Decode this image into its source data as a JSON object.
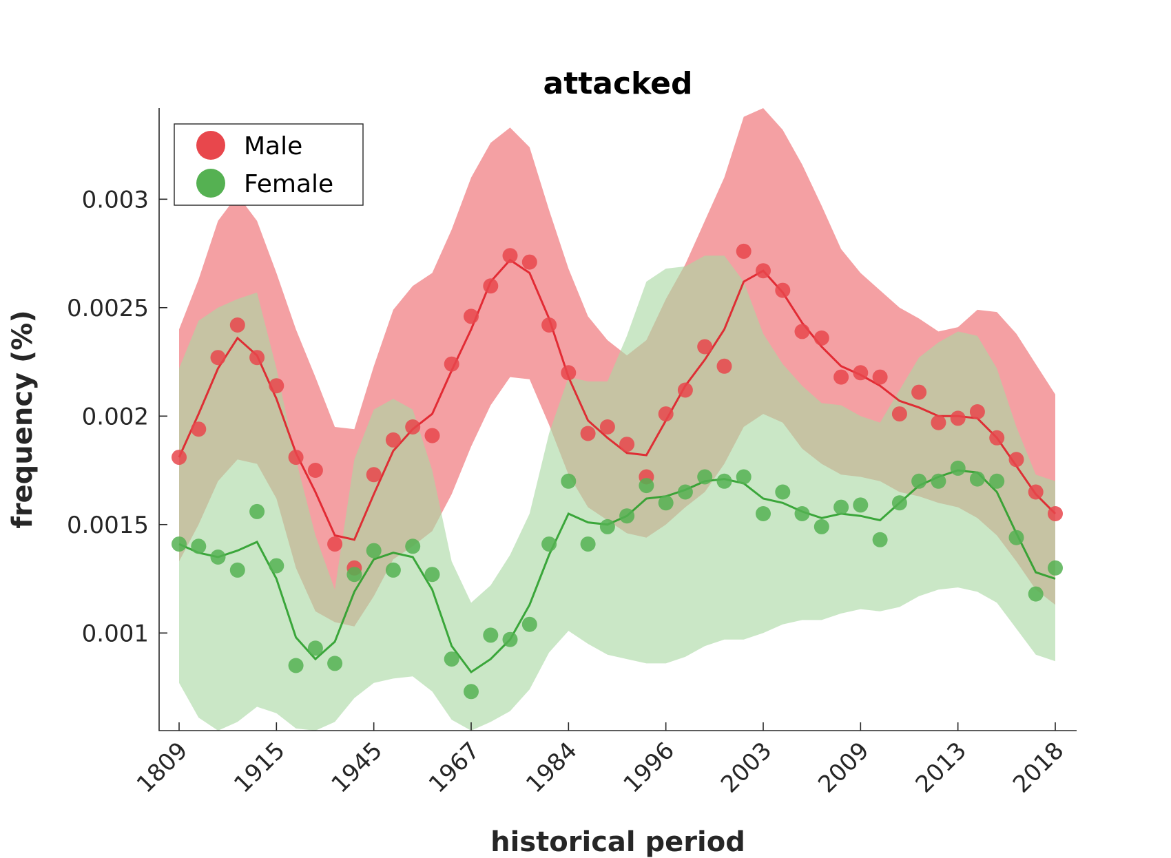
{
  "chart_data": {
    "type": "scatter",
    "title": "attacked",
    "xlabel": "historical period",
    "ylabel": "frequency (%)",
    "x_tick_labels": [
      "1809",
      "1915",
      "1945",
      "1967",
      "1984",
      "1996",
      "2003",
      "2009",
      "2013",
      "2018"
    ],
    "y_tick_labels": [
      "0.001",
      "0.0015",
      "0.002",
      "0.0025",
      "0.003"
    ],
    "y_ticks": [
      0.001,
      0.0015,
      0.002,
      0.0025,
      0.003
    ],
    "ylim": [
      0.00055,
      0.00342
    ],
    "n_points": 46,
    "legend": {
      "position": "top-left",
      "entries": [
        "Male",
        "Female"
      ]
    },
    "series": [
      {
        "name": "Male",
        "marker_color": "#e8474c",
        "line_color": "#e01e28",
        "band_color": "#f4a0a3",
        "points": [
          0.00181,
          0.00194,
          0.00227,
          0.00242,
          0.00227,
          0.00214,
          0.00181,
          0.00175,
          0.00141,
          0.0013,
          0.00173,
          0.00189,
          0.00195,
          0.00191,
          0.00224,
          0.00246,
          0.0026,
          0.00274,
          0.00271,
          0.00242,
          0.0022,
          0.00192,
          0.00195,
          0.00187,
          0.00172,
          0.00201,
          0.00212,
          0.00232,
          0.00223,
          0.00276,
          0.00267,
          0.00258,
          0.00239,
          0.00236,
          0.00218,
          0.0022,
          0.00218,
          0.00201,
          0.00211,
          0.00197,
          0.00199,
          0.00202,
          0.0019,
          0.0018,
          0.00165,
          0.00155
        ],
        "fit": [
          0.00181,
          0.00201,
          0.00222,
          0.00236,
          0.00228,
          0.00208,
          0.00183,
          0.00165,
          0.00145,
          0.00143,
          0.00164,
          0.00184,
          0.00194,
          0.00201,
          0.00221,
          0.0024,
          0.00262,
          0.00272,
          0.00266,
          0.00245,
          0.00218,
          0.00198,
          0.0019,
          0.00183,
          0.00182,
          0.00198,
          0.00214,
          0.00226,
          0.0024,
          0.00262,
          0.00267,
          0.00257,
          0.00243,
          0.00232,
          0.00223,
          0.00219,
          0.00214,
          0.00207,
          0.00204,
          0.002,
          0.002,
          0.00199,
          0.0019,
          0.00177,
          0.00164,
          0.00155
        ],
        "band_upper": [
          0.0024,
          0.00263,
          0.0029,
          0.00302,
          0.0029,
          0.00266,
          0.0024,
          0.00218,
          0.00195,
          0.00194,
          0.00223,
          0.00249,
          0.0026,
          0.00266,
          0.00286,
          0.0031,
          0.00326,
          0.00333,
          0.00324,
          0.00295,
          0.00268,
          0.00246,
          0.00235,
          0.00228,
          0.00235,
          0.00254,
          0.0027,
          0.0029,
          0.0031,
          0.00338,
          0.00342,
          0.00332,
          0.00316,
          0.00297,
          0.00277,
          0.00266,
          0.00258,
          0.0025,
          0.00245,
          0.00239,
          0.00241,
          0.00249,
          0.00248,
          0.00238,
          0.00224,
          0.0021
        ],
        "band_lower": [
          0.00133,
          0.0015,
          0.0017,
          0.0018,
          0.00178,
          0.00162,
          0.0013,
          0.0011,
          0.00105,
          0.00103,
          0.00117,
          0.00134,
          0.0014,
          0.00147,
          0.00164,
          0.00186,
          0.00205,
          0.00218,
          0.00217,
          0.00196,
          0.00173,
          0.00158,
          0.00152,
          0.00146,
          0.00144,
          0.0015,
          0.00158,
          0.00165,
          0.00178,
          0.00195,
          0.00201,
          0.00197,
          0.00185,
          0.00178,
          0.00173,
          0.00172,
          0.0017,
          0.00165,
          0.00163,
          0.0016,
          0.00158,
          0.00153,
          0.00145,
          0.00133,
          0.0012,
          0.00113
        ]
      },
      {
        "name": "Female",
        "marker_color": "#55b152",
        "line_color": "#2a9e2a",
        "band_color": "#a9d9a3",
        "points": [
          0.00141,
          0.0014,
          0.00135,
          0.00129,
          0.00156,
          0.00131,
          0.00085,
          0.00093,
          0.00086,
          0.00127,
          0.00138,
          0.00129,
          0.0014,
          0.00127,
          0.00088,
          0.00073,
          0.00099,
          0.00097,
          0.00104,
          0.00141,
          0.0017,
          0.00141,
          0.00149,
          0.00154,
          0.00168,
          0.0016,
          0.00165,
          0.00172,
          0.0017,
          0.00172,
          0.00155,
          0.00165,
          0.00155,
          0.00149,
          0.00158,
          0.00159,
          0.00143,
          0.0016,
          0.0017,
          0.0017,
          0.00176,
          0.00171,
          0.0017,
          0.00144,
          0.00118,
          0.0013
        ],
        "fit": [
          0.00141,
          0.00137,
          0.00135,
          0.00138,
          0.00142,
          0.00125,
          0.00098,
          0.00088,
          0.00096,
          0.00119,
          0.00134,
          0.00137,
          0.00135,
          0.0012,
          0.00094,
          0.00082,
          0.00088,
          0.00097,
          0.00113,
          0.00136,
          0.00155,
          0.00151,
          0.0015,
          0.00154,
          0.00162,
          0.00163,
          0.00166,
          0.0017,
          0.00171,
          0.00169,
          0.00162,
          0.0016,
          0.00156,
          0.00153,
          0.00155,
          0.00154,
          0.00152,
          0.0016,
          0.00168,
          0.00172,
          0.00175,
          0.00174,
          0.00165,
          0.00146,
          0.00128,
          0.00125
        ],
        "band_upper": [
          0.00222,
          0.00244,
          0.0025,
          0.00254,
          0.00257,
          0.00222,
          0.0018,
          0.00145,
          0.0012,
          0.0018,
          0.00203,
          0.00208,
          0.00203,
          0.00175,
          0.00133,
          0.00114,
          0.00122,
          0.00136,
          0.00155,
          0.00192,
          0.00218,
          0.00216,
          0.00216,
          0.00237,
          0.00262,
          0.00268,
          0.00269,
          0.00274,
          0.00274,
          0.00262,
          0.00238,
          0.00224,
          0.00214,
          0.00206,
          0.00205,
          0.002,
          0.00197,
          0.00212,
          0.00227,
          0.00234,
          0.00239,
          0.00237,
          0.00222,
          0.00195,
          0.00173,
          0.0017
        ],
        "band_lower": [
          0.00077,
          0.00061,
          0.00055,
          0.00059,
          0.00066,
          0.00063,
          0.00056,
          0.00055,
          0.00059,
          0.0007,
          0.00077,
          0.00079,
          0.0008,
          0.00073,
          0.0006,
          0.00055,
          0.00059,
          0.00064,
          0.00074,
          0.00091,
          0.00101,
          0.00095,
          0.0009,
          0.00088,
          0.00086,
          0.00086,
          0.00089,
          0.00094,
          0.00097,
          0.00097,
          0.001,
          0.00104,
          0.00106,
          0.00106,
          0.00109,
          0.00111,
          0.0011,
          0.00112,
          0.00117,
          0.0012,
          0.00121,
          0.00119,
          0.00114,
          0.00102,
          0.0009,
          0.00087
        ]
      }
    ]
  }
}
